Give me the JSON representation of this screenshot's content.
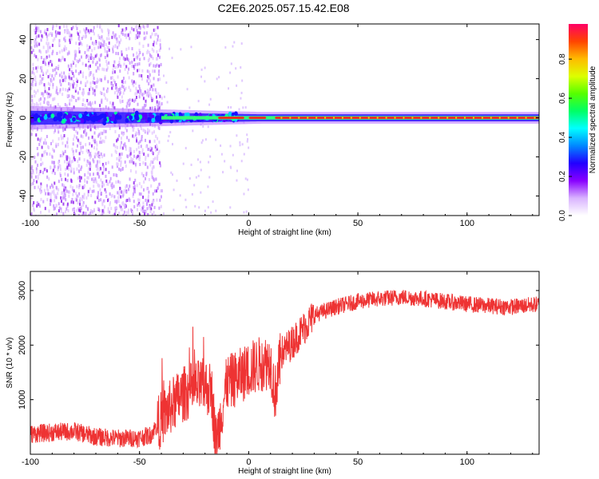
{
  "title": "C2E6.2025.057.15.42.E08",
  "chart_data": [
    {
      "type": "heatmap",
      "xlabel": "Height of straight line (km)",
      "ylabel": "Frequency (Hz)",
      "xlim": [
        -100,
        133
      ],
      "ylim": [
        -50,
        48
      ],
      "xticks": [
        -100,
        -50,
        0,
        50,
        100
      ],
      "yticks": [
        -40,
        -20,
        0,
        20,
        40
      ],
      "colorbar": {
        "label": "Normalized spectral amplitude",
        "range": [
          0,
          0.98
        ],
        "ticks": [
          0.0,
          0.2,
          0.4,
          0.6,
          0.8
        ],
        "tick_labels": [
          "0.0",
          "0.2",
          "0.4",
          "0.6",
          "0.8"
        ],
        "colormap": [
          "#ffffff",
          "#d9b3ff",
          "#8800ff",
          "#2200ff",
          "#0088ff",
          "#00ffff",
          "#00ff66",
          "#55ff00",
          "#ddff00",
          "#ffbb00",
          "#ff4400",
          "#ff0066"
        ]
      },
      "features": {
        "signal_center_hz": 0,
        "scatter_region_x": [
          -100,
          -40
        ],
        "scatter_region_y": [
          -50,
          48
        ],
        "band_halfwidth_hz": [
          6,
          3
        ],
        "strong_core_segments_x": [
          [
            -14,
            -2
          ],
          [
            0,
            8
          ],
          [
            12,
            133
          ]
        ]
      }
    },
    {
      "type": "line",
      "xlabel": "Height of straight line (km)",
      "ylabel": "SNR (10 * v/v)",
      "xlim": [
        -100,
        133
      ],
      "ylim": [
        0,
        3350
      ],
      "xticks": [
        -100,
        -50,
        0,
        50,
        100
      ],
      "yticks": [
        1000,
        2000,
        3000
      ],
      "color": "#ee3333",
      "series": [
        {
          "x": [
            -100,
            -90,
            -80,
            -70,
            -60,
            -50,
            -45,
            -40,
            -35,
            -30,
            -25,
            -20,
            -17,
            -15,
            -10,
            -5,
            0,
            5,
            10,
            12,
            15,
            20,
            25,
            30,
            40,
            50,
            60,
            70,
            80,
            90,
            100,
            110,
            120,
            133
          ],
          "values": [
            370,
            400,
            420,
            320,
            290,
            300,
            350,
            650,
            900,
            1100,
            1200,
            1250,
            1150,
            200,
            1300,
            1400,
            1550,
            1650,
            1700,
            1100,
            1850,
            2050,
            2300,
            2550,
            2700,
            2800,
            2850,
            2880,
            2850,
            2800,
            2750,
            2720,
            2700,
            2750
          ]
        }
      ]
    }
  ]
}
